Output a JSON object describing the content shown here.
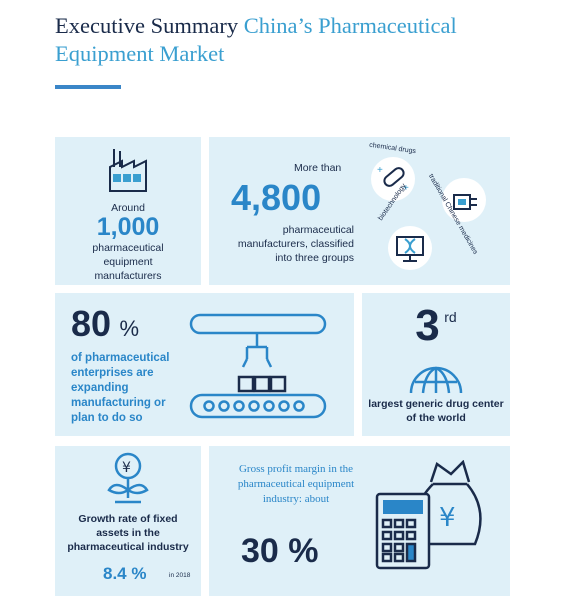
{
  "header": {
    "title_part1": "Executive Summary",
    "title_part2": "China’s Pharmaceutical Equipment Market"
  },
  "panel_manufacturers": {
    "prefix": "Around",
    "value": "1,000",
    "label": "pharmaceutical equipment manufacturers",
    "icon": "factory-icon"
  },
  "panel_groups": {
    "prefix": "More than",
    "value": "4,800",
    "label": "pharmaceutical manufacturers, classified into three groups",
    "groups": [
      "chemical drugs",
      "traditional Chinese medicines",
      "biotechnology"
    ],
    "icons": [
      "pill-icon",
      "robot-arm-icon",
      "dna-monitor-icon"
    ]
  },
  "panel_expanding": {
    "value": "80",
    "unit": "%",
    "label": "of pharmaceutical enterprises are expanding manufacturing or plan to do so",
    "icon": "conveyor-belt-icon"
  },
  "panel_rank": {
    "value": "3",
    "suffix": "rd",
    "label": "largest generic drug center of the world",
    "icon": "globe-icon"
  },
  "panel_growth": {
    "label": "Growth rate of fixed assets in the pharmaceutical industry",
    "value": "8.4 %",
    "note": "in 2018",
    "icon": "money-plant-icon"
  },
  "panel_margin": {
    "label": "Gross profit margin in the pharmaceutical equipment industry: about",
    "value": "30 %",
    "icon": "calculator-money-bag-icon"
  },
  "colors": {
    "navy": "#1a2b4a",
    "blue": "#2a86c8",
    "panel": "#dff0f8"
  }
}
